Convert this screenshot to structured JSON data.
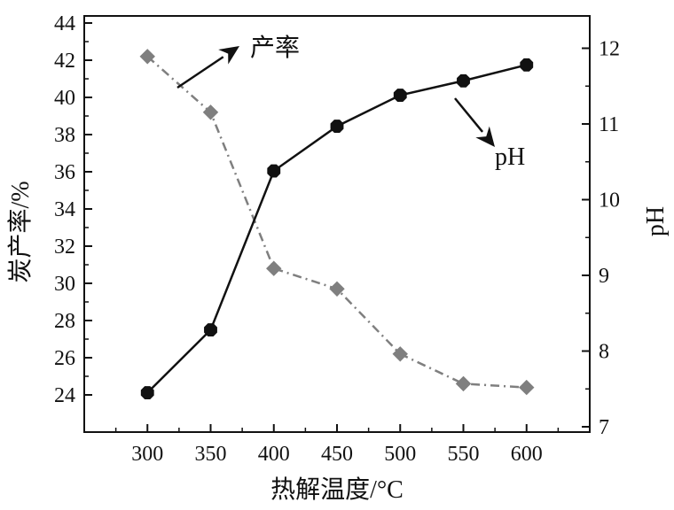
{
  "chart_data": {
    "type": "line",
    "x": [
      300,
      350,
      400,
      450,
      500,
      550,
      600
    ],
    "xlabel": "热解温度/°C",
    "ylabel_left": "炭产率/%",
    "ylabel_right": "pH",
    "xlim": [
      250,
      650
    ],
    "ylim_left": [
      24,
      44
    ],
    "ylim_right": [
      7,
      12.5
    ],
    "x_ticks": [
      "300",
      "350",
      "400",
      "450",
      "500",
      "550",
      "600"
    ],
    "y_left_ticks": [
      "24",
      "26",
      "28",
      "30",
      "32",
      "34",
      "36",
      "38",
      "40",
      "42",
      "44"
    ],
    "y_right_ticks": [
      "7",
      "8",
      "9",
      "10",
      "11",
      "12"
    ],
    "grid": false,
    "series": [
      {
        "name": "产率",
        "axis": "left",
        "values": [
          42.2,
          39.2,
          30.8,
          29.7,
          26.2,
          24.6,
          24.4
        ],
        "color": "#7f7f7f",
        "line_style": "dash-dot",
        "marker": "diamond"
      },
      {
        "name": "pH",
        "axis": "right",
        "values": [
          7.45,
          8.28,
          10.38,
          10.97,
          11.38,
          11.57,
          11.78
        ],
        "color": "#111111",
        "line_style": "solid",
        "marker": "octagon"
      }
    ],
    "annotations": [
      {
        "text": "产率",
        "arrow_direction": "up-right"
      },
      {
        "text": "pH",
        "arrow_direction": "down-right"
      }
    ]
  }
}
